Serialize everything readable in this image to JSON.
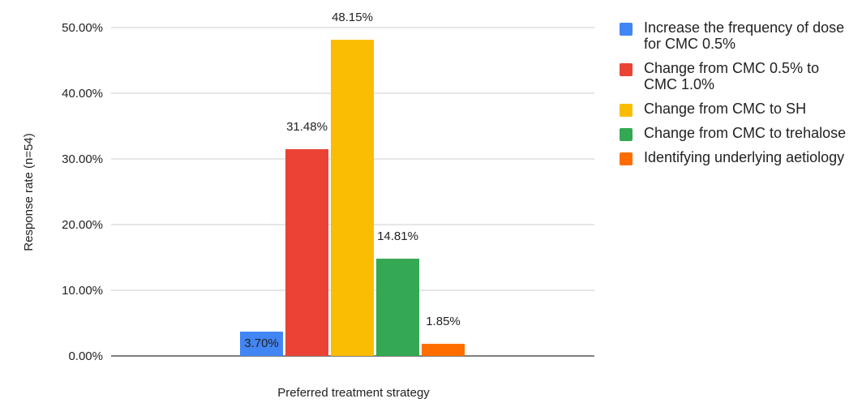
{
  "chart_data": {
    "type": "bar",
    "xlabel": "Preferred treatment strategy",
    "ylabel": "Response rate (n=54)",
    "ylim": [
      0,
      50
    ],
    "yticks": [
      0,
      10,
      20,
      30,
      40,
      50
    ],
    "ytick_labels": [
      "0.00%",
      "10.00%",
      "20.00%",
      "30.00%",
      "40.00%",
      "50.00%"
    ],
    "grid": true,
    "legend_position": "right",
    "series": [
      {
        "name": "Increase the frequency of dose for CMC 0.5%",
        "value": 3.7,
        "label": "3.70%",
        "color": "#4285f4"
      },
      {
        "name": "Change from CMC 0.5% to CMC 1.0%",
        "value": 31.48,
        "label": "31.48%",
        "color": "#ea4335"
      },
      {
        "name": "Change from CMC to SH",
        "value": 48.15,
        "label": "48.15%",
        "color": "#fbbc04"
      },
      {
        "name": "Change from CMC to trehalose",
        "value": 14.81,
        "label": "14.81%",
        "color": "#34a853"
      },
      {
        "name": "Identifying underlying aetiology",
        "value": 1.85,
        "label": "1.85%",
        "color": "#ff6d01"
      }
    ]
  }
}
